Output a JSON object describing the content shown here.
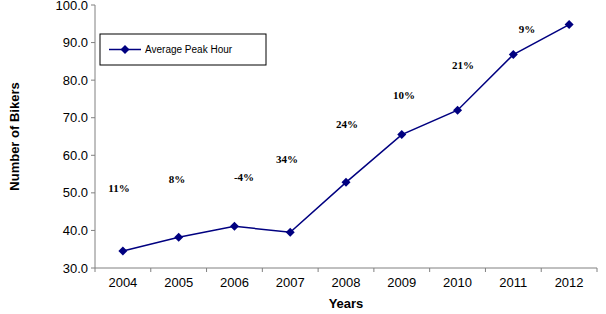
{
  "chart_data": {
    "type": "line",
    "x_label": "Years",
    "y_label": "Number of Bikers",
    "categories": [
      "2004",
      "2005",
      "2006",
      "2007",
      "2008",
      "2009",
      "2010",
      "2011",
      "2012"
    ],
    "series": [
      {
        "name": "Average Peak Hour",
        "color": "#000080",
        "marker": "diamond",
        "line_style": "solid",
        "values": [
          34.5,
          38.2,
          41.1,
          39.5,
          52.8,
          65.5,
          72.0,
          86.8,
          94.8
        ]
      }
    ],
    "annotations": [
      "11%",
      "8%",
      "-4%",
      "34%",
      "24%",
      "10%",
      "21%",
      "9%"
    ],
    "ylim": [
      30,
      100
    ],
    "yticks": [
      {
        "value": 30,
        "label": "30.0"
      },
      {
        "value": 40,
        "label": "40.0"
      },
      {
        "value": 50,
        "label": "50.0"
      },
      {
        "value": 60,
        "label": "60.0"
      },
      {
        "value": 70,
        "label": "70.0"
      },
      {
        "value": 80,
        "label": "80.0"
      },
      {
        "value": 90,
        "label": "90.0"
      },
      {
        "value": 100,
        "label": "100.0"
      }
    ],
    "grid": false,
    "legend": "top-left"
  }
}
